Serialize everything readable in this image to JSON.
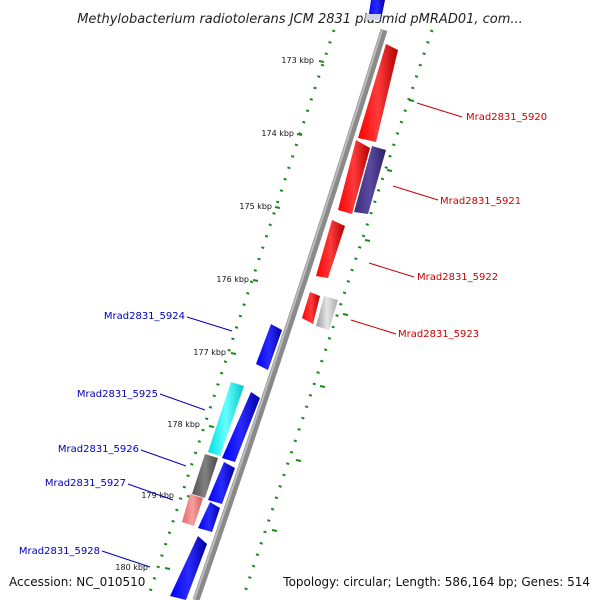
{
  "title": "Methylobacterium radiotolerans JCM 2831 plasmid pMRAD01, com...",
  "footer": {
    "accession": "Accession: NC_010510",
    "summary": "Topology: circular; Length: 586,164 bp; Genes: 514"
  },
  "ticks": [
    "173 kbp",
    "174 kbp",
    "175 kbp",
    "176 kbp",
    "177 kbp",
    "178 kbp",
    "179 kbp",
    "180 kbp"
  ],
  "genes_right": [
    {
      "name": "Mrad2831_5920",
      "color": "#cc0000"
    },
    {
      "name": "Mrad2831_5921",
      "color": "#cc0000"
    },
    {
      "name": "Mrad2831_5922",
      "color": "#cc0000"
    },
    {
      "name": "Mrad2831_5923",
      "color": "#cc0000"
    }
  ],
  "genes_left": [
    {
      "name": "Mrad2831_5924",
      "color": "#0000bb"
    },
    {
      "name": "Mrad2831_5925",
      "color": "#0000bb"
    },
    {
      "name": "Mrad2831_5926",
      "color": "#0000bb"
    },
    {
      "name": "Mrad2831_5927",
      "color": "#0000bb"
    },
    {
      "name": "Mrad2831_5928",
      "color": "#0000bb"
    }
  ],
  "colors": {
    "forward_cds": "#ff0000",
    "reverse_cds": "#0000ff",
    "backbone": "#8a8a8a",
    "ruler": "#1a8a1a",
    "gray_feature": "#bbbbbb",
    "purple_feature": "#4b3a8f",
    "cyan_feature": "#00ffff",
    "dark_gray_feature": "#666666",
    "pink_feature": "#f08080"
  }
}
